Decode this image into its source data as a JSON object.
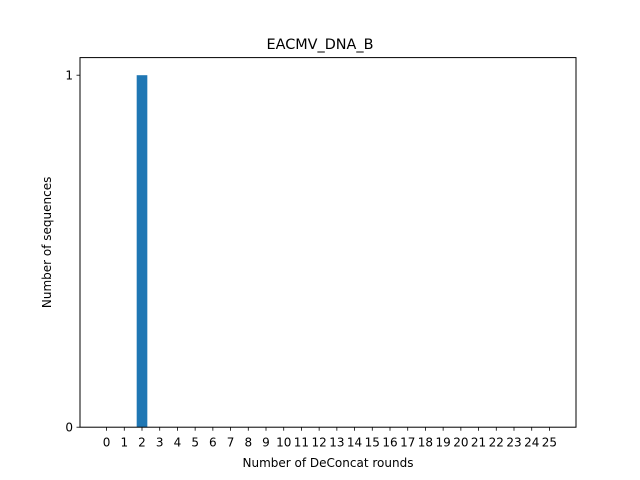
{
  "chart_data": {
    "type": "bar",
    "title": "EACMV_DNA_B",
    "xlabel": "Number of DeConcat rounds",
    "ylabel": "Number of sequences",
    "categories": [
      "0",
      "1",
      "2",
      "3",
      "4",
      "5",
      "6",
      "7",
      "8",
      "9",
      "10",
      "11",
      "12",
      "13",
      "14",
      "15",
      "16",
      "17",
      "18",
      "19",
      "20",
      "21",
      "22",
      "23",
      "24",
      "25"
    ],
    "values": [
      0,
      0,
      1,
      0,
      0,
      0,
      0,
      0,
      0,
      0,
      0,
      0,
      0,
      0,
      0,
      0,
      0,
      0,
      0,
      0,
      0,
      0,
      0,
      0,
      0,
      0
    ],
    "yticks": [
      "0",
      "1"
    ],
    "ylim": [
      0,
      1
    ],
    "xlim": [
      -1.5,
      26.5
    ],
    "grid": false,
    "bar_color": "#1f77b4"
  }
}
